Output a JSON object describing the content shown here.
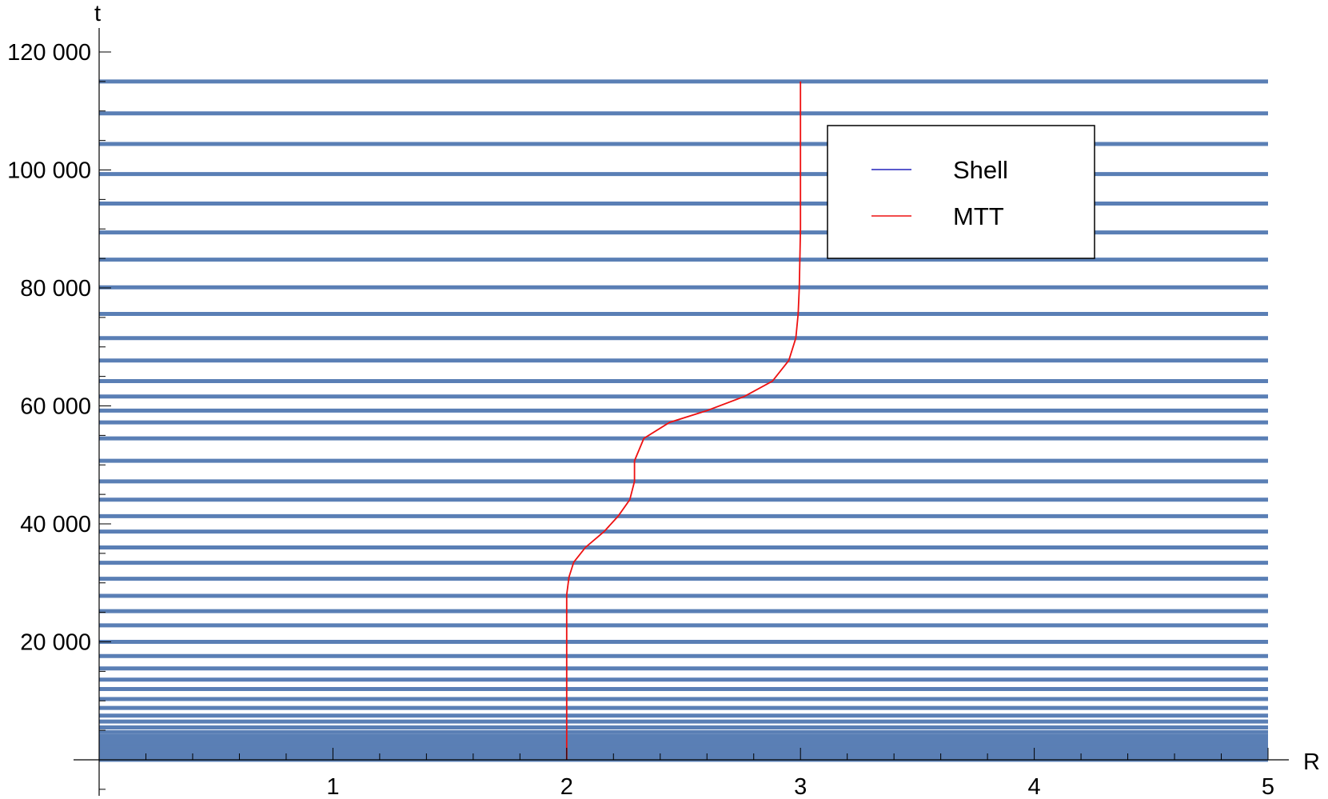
{
  "chart_data": {
    "type": "line",
    "title": "",
    "xlabel": "R",
    "ylabel": "t",
    "xlim": [
      0,
      5
    ],
    "ylim": [
      0,
      120000
    ],
    "x_ticks": [
      {
        "value": 1,
        "label": "1"
      },
      {
        "value": 2,
        "label": "2"
      },
      {
        "value": 3,
        "label": "3"
      },
      {
        "value": 4,
        "label": "4"
      },
      {
        "value": 5,
        "label": "5"
      }
    ],
    "y_ticks": [
      {
        "value": 20000,
        "label": "20 000"
      },
      {
        "value": 40000,
        "label": "40 000"
      },
      {
        "value": 60000,
        "label": "60 000"
      },
      {
        "value": 80000,
        "label": "80 000"
      },
      {
        "value": 100000,
        "label": "100 000"
      },
      {
        "value": 120000,
        "label": "120 000"
      }
    ],
    "grid": false,
    "legend_position": "top-right",
    "legend": [
      {
        "label": "Shell",
        "color": "#2222bb"
      },
      {
        "label": "MTT",
        "color": "#ee1111"
      }
    ],
    "series": [
      {
        "name": "Shell",
        "color": "#5a7fb5",
        "kind": "horizontal-lines",
        "x_range": [
          0,
          5
        ],
        "t_values": [
          0,
          250,
          500,
          750,
          1000,
          1250,
          1500,
          1750,
          2000,
          2250,
          2500,
          2750,
          3000,
          3500,
          4000,
          4700,
          5500,
          6500,
          7500,
          8800,
          10300,
          12000,
          13600,
          15500,
          17600,
          20000,
          22800,
          25200,
          27800,
          30700,
          33400,
          36000,
          38700,
          41300,
          44100,
          47200,
          50700,
          54500,
          57200,
          59200,
          61600,
          64200,
          67700,
          71500,
          75600,
          80100,
          84800,
          89400,
          94300,
          99300,
          104400,
          109600,
          115000
        ]
      },
      {
        "name": "MTT",
        "color": "#ee1111",
        "kind": "curve",
        "points": [
          [
            2.0,
            0
          ],
          [
            2.0,
            20000
          ],
          [
            2.0,
            28000
          ],
          [
            2.01,
            31000
          ],
          [
            2.03,
            33500
          ],
          [
            2.08,
            36000
          ],
          [
            2.16,
            38700
          ],
          [
            2.22,
            41300
          ],
          [
            2.27,
            44100
          ],
          [
            2.29,
            47200
          ],
          [
            2.29,
            50700
          ],
          [
            2.33,
            54500
          ],
          [
            2.44,
            57200
          ],
          [
            2.6,
            59200
          ],
          [
            2.76,
            61600
          ],
          [
            2.88,
            64200
          ],
          [
            2.95,
            67700
          ],
          [
            2.98,
            71500
          ],
          [
            2.99,
            75600
          ],
          [
            2.995,
            80000
          ],
          [
            3.0,
            90000
          ],
          [
            3.0,
            100000
          ],
          [
            3.0,
            115000
          ]
        ]
      }
    ]
  }
}
